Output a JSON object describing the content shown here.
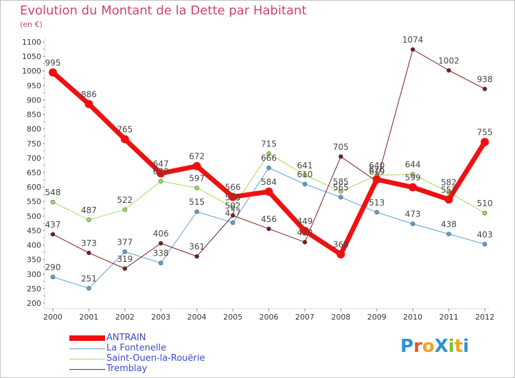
{
  "title": "Evolution du Montant de la Dette par Habitant",
  "unit_label": "(en €)",
  "brand": {
    "text": "ProXiti",
    "letters": [
      "P",
      "r",
      "o",
      "X",
      "i",
      "t",
      "i"
    ],
    "colors": [
      "#2e8fd6",
      "#e8552a",
      "#f2a21b",
      "#2e8fd6",
      "#7bbf2a",
      "#f2a21b",
      "#2e8fd6"
    ]
  },
  "chart_data": {
    "type": "line",
    "title": "Evolution du Montant de la Dette par Habitant",
    "ylabel": "(en €)",
    "x": [
      "2000",
      "2001",
      "2002",
      "2003",
      "2004",
      "2005",
      "2006",
      "2007",
      "2008",
      "2009",
      "2010",
      "2011",
      "2012"
    ],
    "ylim": [
      200,
      1100
    ],
    "yticks": [
      200,
      250,
      300,
      350,
      400,
      450,
      500,
      550,
      600,
      650,
      700,
      750,
      800,
      850,
      900,
      950,
      1000,
      1050,
      1100
    ],
    "grid": false,
    "legend_position": "bottom-left",
    "series": [
      {
        "name": "ANTRAIN",
        "color": "#ee1111",
        "width": 7,
        "marker": 6,
        "values": [
          995,
          886,
          765,
          647,
          672,
          566,
          584,
          449,
          368,
          626,
          599,
          557,
          755
        ],
        "labels": [
          "995",
          "886",
          "765",
          "647",
          "672",
          "566",
          "584",
          "449",
          "368",
          "626",
          "599",
          "557",
          "755"
        ]
      },
      {
        "name": "La Fontenelle",
        "color": "#5a9fd4",
        "width": 1,
        "marker": 3,
        "values": [
          290,
          251,
          377,
          338,
          515,
          477,
          666,
          610,
          565,
          513,
          473,
          438,
          403
        ],
        "labels": [
          "290",
          "251",
          "377",
          "338",
          "515",
          "477",
          "666",
          "610",
          "565",
          "513",
          "473",
          "438",
          "403"
        ]
      },
      {
        "name": "Saint-Ouen-la-Rouërie",
        "color": "#99dd55",
        "width": 1,
        "marker": 3,
        "values": [
          548,
          487,
          522,
          620,
          597,
          530,
          715,
          641,
          585,
          640,
          644,
          582,
          510
        ],
        "labels": [
          "548",
          "487",
          "522",
          "620",
          "597",
          "530",
          "715",
          "641",
          "585",
          "640",
          "644",
          "582",
          "510"
        ]
      },
      {
        "name": "Tremblay",
        "color": "#7a1a1a",
        "width": 1,
        "marker": 3,
        "values": [
          437,
          373,
          319,
          406,
          361,
          502,
          456,
          410,
          705,
          619,
          1074,
          1002,
          938
        ],
        "labels": [
          "437",
          "373",
          "319",
          "406",
          "361",
          "502",
          "456",
          "410",
          "705",
          "619",
          "1074",
          "1002",
          "938"
        ]
      }
    ]
  }
}
